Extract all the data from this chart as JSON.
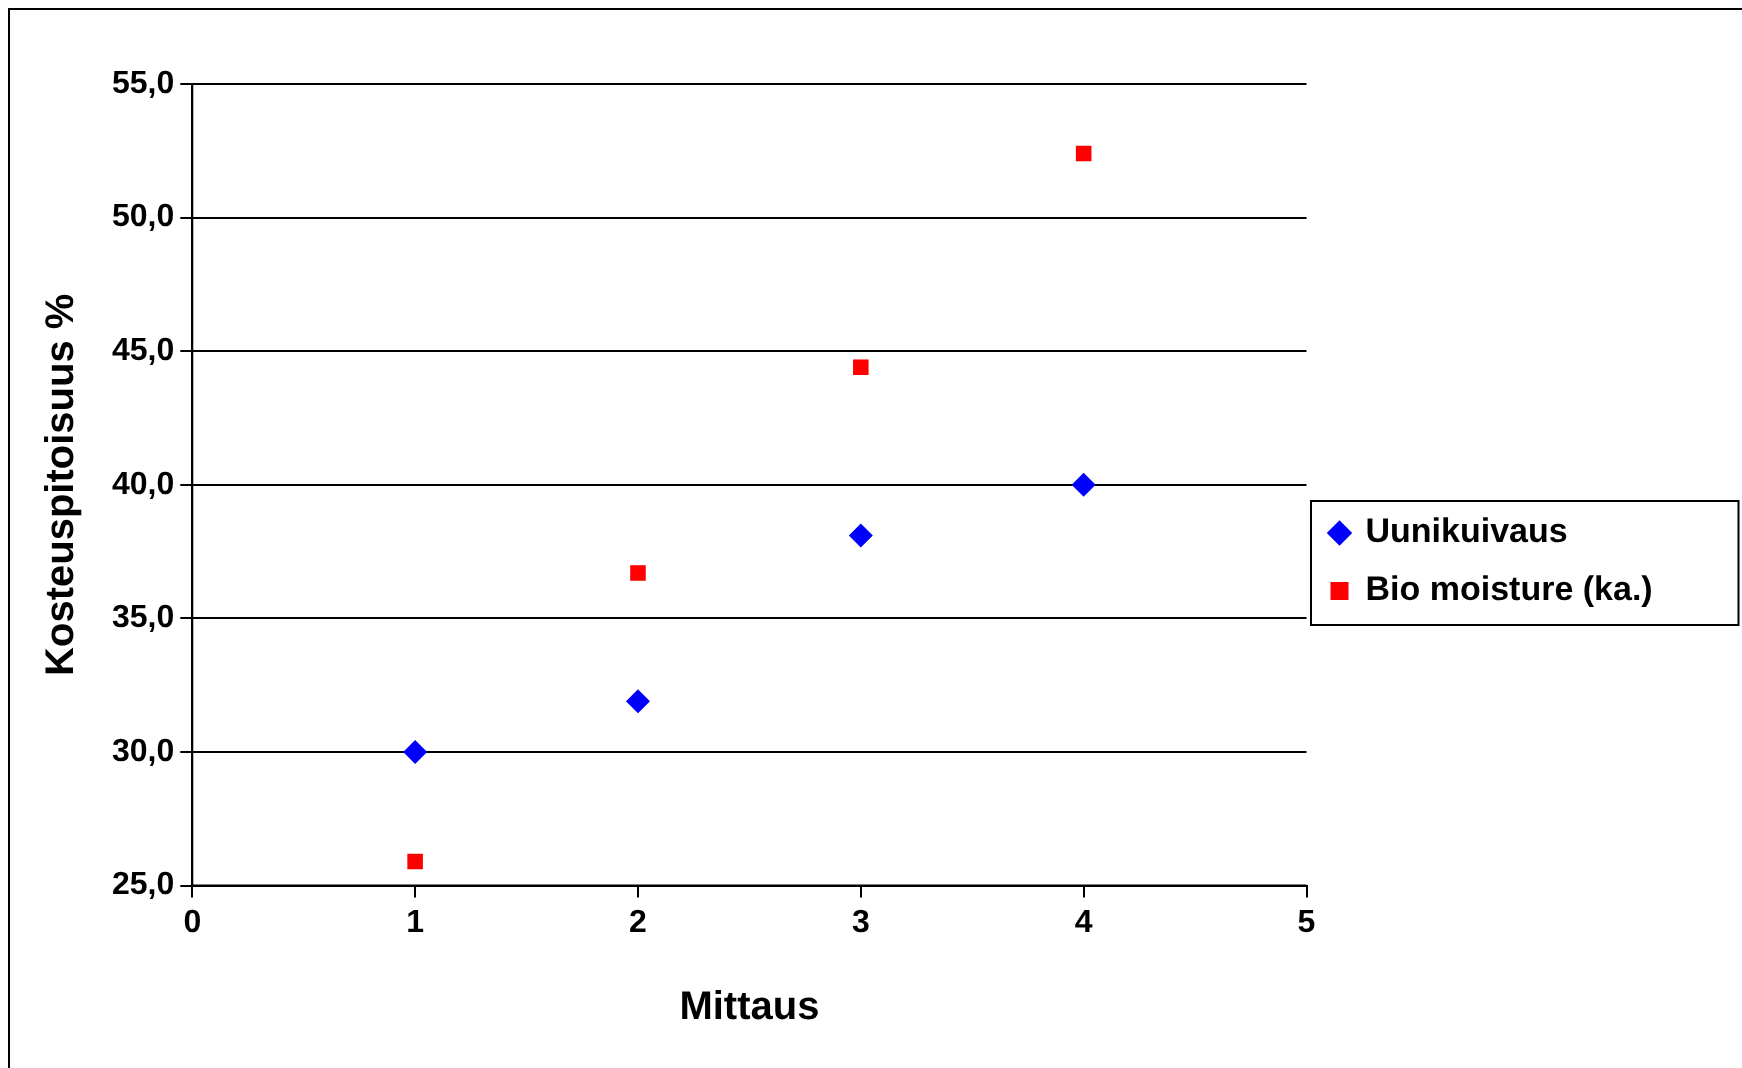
{
  "chart_data": {
    "type": "scatter",
    "xlabel": "Mittaus",
    "ylabel": "Kosteuspitoisuus %",
    "xlim": [
      0,
      5
    ],
    "xticks": [
      0,
      1,
      2,
      3,
      4,
      5
    ],
    "ylim": [
      25,
      55
    ],
    "yticks": [
      {
        "value": 25,
        "label": "25,0"
      },
      {
        "value": 30,
        "label": "30,0"
      },
      {
        "value": 35,
        "label": "35,0"
      },
      {
        "value": 40,
        "label": "40,0"
      },
      {
        "value": 45,
        "label": "45,0"
      },
      {
        "value": 50,
        "label": "50,0"
      },
      {
        "value": 55,
        "label": "55,0"
      }
    ],
    "grid": "y",
    "legend": "right",
    "series": [
      {
        "name": "Uunikuivaus",
        "color": "#0000ff",
        "marker": "diamond",
        "x": [
          1,
          2,
          3,
          4
        ],
        "values": [
          30.0,
          31.9,
          38.1,
          40.0
        ]
      },
      {
        "name": "Bio moisture (ka.)",
        "color": "#ff0000",
        "marker": "square",
        "x": [
          1,
          2,
          3,
          4
        ],
        "values": [
          25.9,
          36.7,
          44.4,
          52.4
        ]
      }
    ]
  }
}
